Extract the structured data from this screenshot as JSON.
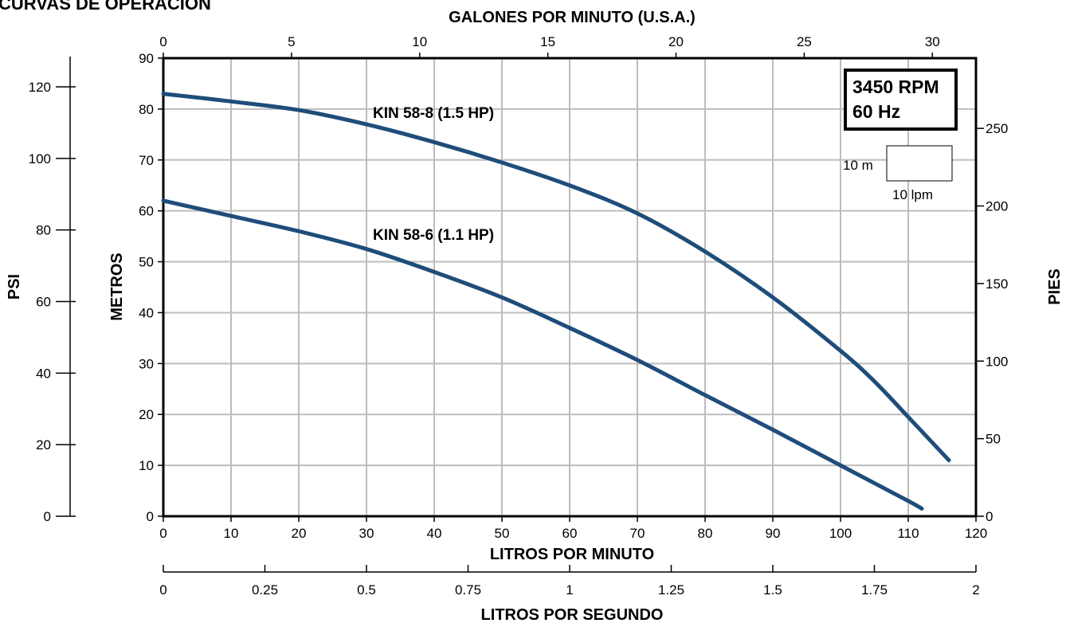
{
  "title": "CURVAS DE OPERACIÓN",
  "info_box": {
    "line1": "3450 RPM",
    "line2": "60 Hz"
  },
  "scale_box": {
    "vertical": "10 m",
    "horizontal": "10 lpm"
  },
  "colors": {
    "curve": "#1f4d7a",
    "grid": "#bdbdbd",
    "axis": "#000000"
  },
  "chart_data": {
    "type": "line",
    "title": "CURVAS DE OPERACIÓN",
    "xlabel": "LITROS POR MINUTO",
    "ylabel": "METROS",
    "xlim": [
      0,
      120
    ],
    "ylim": [
      0,
      90
    ],
    "x_ticks": [
      0,
      10,
      20,
      30,
      40,
      50,
      60,
      70,
      80,
      90,
      100,
      110,
      120
    ],
    "y_ticks": [
      0,
      10,
      20,
      30,
      40,
      50,
      60,
      70,
      80,
      90
    ],
    "grid": true,
    "secondary_axes": {
      "top": {
        "label": "GALONES POR MINUTO (U.S.A.)",
        "ticks": [
          0,
          5,
          10,
          15,
          20,
          25,
          30
        ]
      },
      "bottom2": {
        "label": "LITROS POR SEGUNDO",
        "ticks": [
          "0",
          "0.25",
          "0.5",
          "0.75",
          "1",
          "1.25",
          "1.5",
          "1.75",
          "2"
        ]
      },
      "left2": {
        "label": "PSI",
        "ticks": [
          0,
          20,
          40,
          60,
          80,
          100,
          120
        ]
      },
      "right": {
        "label": "PIES",
        "ticks": [
          0,
          50,
          100,
          150,
          200,
          250
        ]
      }
    },
    "series": [
      {
        "name": "KIN 58-8 (1.5 HP)",
        "x": [
          0,
          10,
          20,
          30,
          40,
          50,
          60,
          70,
          80,
          90,
          100,
          105,
          110,
          116
        ],
        "y": [
          83,
          81.5,
          79.8,
          77,
          73.5,
          69.5,
          65,
          59.5,
          52,
          43,
          32.5,
          26.5,
          19.5,
          11
        ]
      },
      {
        "name": "KIN 58-6 (1.1 HP)",
        "x": [
          0,
          10,
          20,
          30,
          40,
          50,
          60,
          70,
          80,
          90,
          100,
          110,
          112
        ],
        "y": [
          62,
          59,
          56,
          52.5,
          48,
          43,
          37,
          30.7,
          23.8,
          17,
          10,
          3,
          1.5
        ]
      }
    ]
  }
}
